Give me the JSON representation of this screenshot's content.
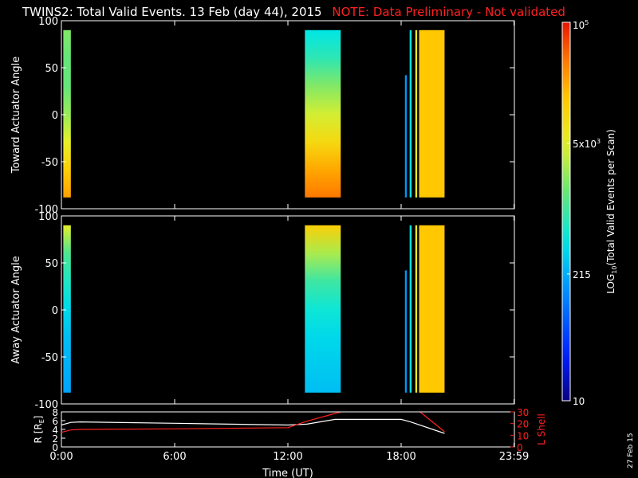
{
  "header": {
    "title": "TWINS2: Total Valid Events. 13 Feb (day  44), 2015",
    "note": "NOTE: Data Preliminary - Not validated"
  },
  "footer": {
    "date_stamp": "27 Feb 15"
  },
  "chart_data": [
    {
      "type": "heatmap",
      "ylabel": "Toward Actuator Angle",
      "ylim": [
        -100,
        100
      ],
      "yticks": [
        "100",
        "50",
        "0",
        "-50",
        "-100"
      ],
      "ytick_values": [
        100,
        50,
        0,
        -50,
        -100
      ],
      "xlim": [
        0,
        24
      ],
      "bands": [
        {
          "x_range": [
            0.1,
            0.5
          ],
          "y_range": [
            -88,
            90
          ],
          "profile": [
            0.58,
            0.55,
            0.55,
            0.6,
            0.68,
            0.78,
            0.85
          ]
        },
        {
          "x_range": [
            12.9,
            14.8
          ],
          "y_range": [
            -88,
            90
          ],
          "profile": [
            0.42,
            0.48,
            0.58,
            0.66,
            0.75,
            0.84,
            0.9
          ]
        },
        {
          "x_range": [
            18.2,
            18.3
          ],
          "y_range": [
            -88,
            42
          ],
          "profile": [
            0.3
          ]
        },
        {
          "x_range": [
            18.45,
            18.55
          ],
          "y_range": [
            -88,
            90
          ],
          "profile": [
            0.42
          ]
        },
        {
          "x_range": [
            18.75,
            18.85
          ],
          "y_range": [
            -88,
            90
          ],
          "profile": [
            0.7
          ]
        },
        {
          "x_range": [
            18.95,
            20.3
          ],
          "y_range": [
            -88,
            90
          ],
          "profile": [
            0.8
          ]
        }
      ]
    },
    {
      "type": "heatmap",
      "ylabel": "Away Actuator Angle",
      "ylim": [
        -100,
        100
      ],
      "yticks": [
        "100",
        "50",
        "0",
        "-50",
        "-100"
      ],
      "ytick_values": [
        100,
        50,
        0,
        -50,
        -100
      ],
      "xlim": [
        0,
        24
      ],
      "bands": [
        {
          "x_range": [
            0.1,
            0.5
          ],
          "y_range": [
            -88,
            90
          ],
          "profile": [
            0.68,
            0.52,
            0.46,
            0.4,
            0.36,
            0.34,
            0.32
          ]
        },
        {
          "x_range": [
            12.9,
            14.8
          ],
          "y_range": [
            -88,
            90
          ],
          "profile": [
            0.78,
            0.62,
            0.5,
            0.44,
            0.4,
            0.38,
            0.36
          ]
        },
        {
          "x_range": [
            18.2,
            18.3
          ],
          "y_range": [
            -88,
            42
          ],
          "profile": [
            0.3
          ]
        },
        {
          "x_range": [
            18.45,
            18.55
          ],
          "y_range": [
            -88,
            90
          ],
          "profile": [
            0.42
          ]
        },
        {
          "x_range": [
            18.75,
            18.85
          ],
          "y_range": [
            -88,
            90
          ],
          "profile": [
            0.7
          ]
        },
        {
          "x_range": [
            18.95,
            20.3
          ],
          "y_range": [
            -88,
            90
          ],
          "profile": [
            0.8
          ]
        }
      ]
    },
    {
      "type": "line",
      "ylabel": "R [R",
      "ylabel_sub": "E",
      "ylabel_end": "]",
      "ylim": [
        0,
        8
      ],
      "yticks": [
        "0",
        "2",
        "4",
        "6",
        "8"
      ],
      "ytick_values": [
        0,
        2,
        4,
        6,
        8
      ],
      "y2label": "L Shell",
      "y2lim": [
        0,
        30
      ],
      "y2ticks": [
        "0",
        "10",
        "20",
        "30"
      ],
      "y2tick_values": [
        0,
        10,
        20,
        30
      ],
      "xlabel": "Time (UT)",
      "xticks": [
        "0:00",
        "6:00",
        "12:00",
        "18:00",
        "23:59"
      ],
      "xtick_values": [
        0,
        6,
        12,
        18,
        23.98
      ],
      "xlim": [
        0,
        24
      ],
      "series": [
        {
          "axis": "left",
          "color": "#ffffff",
          "x": [
            0,
            0.5,
            1,
            6,
            12,
            13,
            14.5,
            18,
            18.5,
            20.3
          ],
          "y": [
            5.0,
            5.6,
            5.7,
            5.4,
            5.0,
            5.2,
            6.3,
            6.3,
            5.7,
            3.1
          ]
        },
        {
          "axis": "right",
          "color": "#ff2020",
          "x": [
            0,
            0.5,
            1,
            6,
            12,
            13,
            14.8
          ],
          "y": [
            12.5,
            14.5,
            15.0,
            15.5,
            16.5,
            22,
            30
          ]
        },
        {
          "axis": "right",
          "color": "#ff2020",
          "x": [
            19,
            20.3
          ],
          "y": [
            30,
            13
          ]
        }
      ]
    }
  ],
  "colorbar": {
    "label_main": "LOG",
    "label_sub": "10",
    "label_rest": "(Total Valid  Events per Scan)",
    "ticks": [
      {
        "label": "10",
        "frac": 0.0
      },
      {
        "label": "215",
        "frac": 0.335
      },
      {
        "label": "5x10",
        "sup": "3",
        "frac": 0.68
      },
      {
        "label": "10",
        "sup": "5",
        "frac": 1.0
      }
    ]
  },
  "colors": {
    "frame": "#ffffff",
    "note": "#ff2020",
    "background": "#000000"
  }
}
